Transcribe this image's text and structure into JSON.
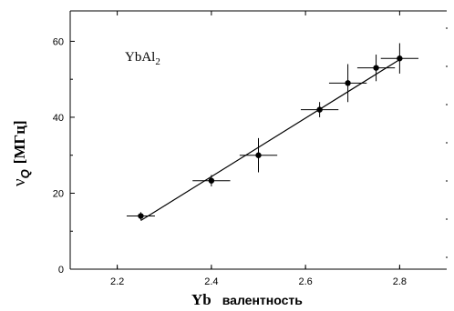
{
  "chart_data": {
    "type": "scatter",
    "annotation": {
      "base": "YbAl",
      "subscript": "2"
    },
    "xlabel": {
      "main": "Yb",
      "secondary": "валентность"
    },
    "ylabel": {
      "symbol": "ν",
      "subscript": "Q",
      "unit": "[МГц]"
    },
    "xlim": [
      2.1,
      2.9
    ],
    "ylim": [
      0,
      68
    ],
    "x_ticks": [
      2.2,
      2.4,
      2.6,
      2.8
    ],
    "y_ticks": [
      0,
      20,
      40,
      60
    ],
    "x_tick_labels": [
      "2.2",
      "2.4",
      "2.6",
      "2.8"
    ],
    "y_tick_labels": [
      "0",
      "20",
      "40",
      "60"
    ],
    "grid": false,
    "points": [
      {
        "x": 2.25,
        "y": 14,
        "xerr": 0.03,
        "yerr": 1
      },
      {
        "x": 2.4,
        "y": 23.3,
        "xerr": 0.04,
        "yerr": 1.5
      },
      {
        "x": 2.5,
        "y": 30,
        "xerr": 0.04,
        "yerr": 4.5
      },
      {
        "x": 2.63,
        "y": 42,
        "xerr": 0.04,
        "yerr": 2
      },
      {
        "x": 2.69,
        "y": 49,
        "xerr": 0.04,
        "yerr": 5
      },
      {
        "x": 2.75,
        "y": 53,
        "xerr": 0.04,
        "yerr": 3.5
      },
      {
        "x": 2.8,
        "y": 55.5,
        "xerr": 0.04,
        "yerr": 4
      }
    ],
    "fit_line": {
      "x": [
        2.25,
        2.8
      ],
      "y": [
        12.8,
        55.2
      ]
    }
  }
}
